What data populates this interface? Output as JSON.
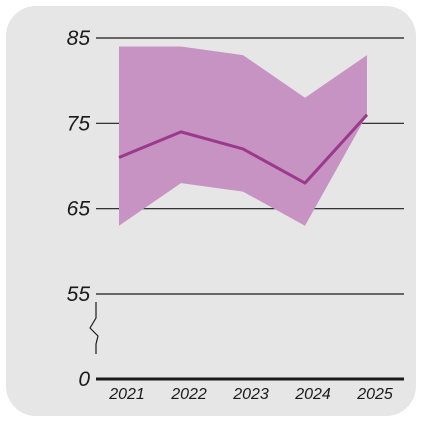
{
  "chart_data": {
    "type": "area",
    "categories": [
      "2021",
      "2022",
      "2023",
      "2024",
      "2025"
    ],
    "series": [
      {
        "role": "range",
        "upper": [
          84,
          84,
          83,
          78,
          83
        ],
        "lower": [
          63,
          68,
          67,
          63,
          76
        ]
      },
      {
        "role": "line",
        "values": [
          71,
          74,
          72,
          68,
          76
        ]
      }
    ],
    "yticks": [
      "85",
      "75",
      "65",
      "55",
      "0"
    ],
    "ylim": [
      55,
      85
    ],
    "axis_break": "between 0 and 55",
    "grid": "horizontal",
    "colors": {
      "band": "#c793c3",
      "line": "#9b3a8d",
      "grid": "#1a1a1a",
      "background": "#e6e6e6"
    }
  }
}
